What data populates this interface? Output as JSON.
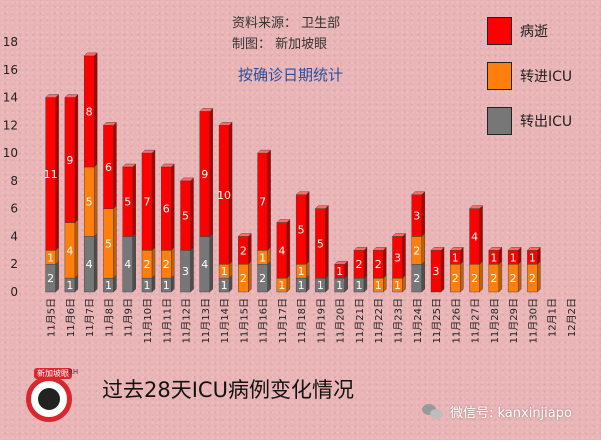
{
  "source_line": "资料来源：  卫生部",
  "credit_line": "制图：  新加坡眼",
  "footer": {
    "title": "过去28天ICU病例变化情况",
    "wechat_label": "微信号: kanxinjiapo",
    "logo_text": "新加坡眼",
    "logo_subtext": "RH"
  },
  "chart_data": {
    "type": "bar",
    "stacked": true,
    "title": "",
    "subtitle": "按确诊日期统计",
    "xlabel": "",
    "ylabel": "",
    "ylim": [
      0,
      18
    ],
    "yticks": [
      0,
      2,
      4,
      6,
      8,
      10,
      12,
      14,
      16,
      18
    ],
    "grid": false,
    "legend_position": "top-right",
    "categories": [
      "11月5日",
      "11月6日",
      "11月7日",
      "11月8日",
      "11月9日",
      "11月10日",
      "11月11日",
      "11月12日",
      "11月13日",
      "11月14日",
      "11月15日",
      "11月16日",
      "11月17日",
      "11月18日",
      "11月19日",
      "11月20日",
      "11月21日",
      "11月22日",
      "11月23日",
      "11月24日",
      "11月25日",
      "11月26日",
      "11月27日",
      "11月28日",
      "11月29日",
      "11月30日",
      "12月1日",
      "12月2日"
    ],
    "series": [
      {
        "name": "转出ICU",
        "color": "#777777",
        "side_color": "#4f4f4f",
        "top_color": "#a5a5a5",
        "values": [
          2,
          1,
          4,
          1,
          4,
          1,
          1,
          3,
          4,
          1,
          0,
          2,
          0,
          1,
          1,
          1,
          1,
          0,
          0,
          2,
          0,
          0,
          0,
          0,
          0,
          0,
          0,
          0
        ]
      },
      {
        "name": "转进ICU",
        "color": "#ff7f0e",
        "side_color": "#c75f00",
        "top_color": "#ffac5c",
        "values": [
          1,
          4,
          5,
          5,
          0,
          2,
          2,
          0,
          0,
          1,
          2,
          1,
          1,
          1,
          0,
          0,
          0,
          1,
          1,
          2,
          0,
          2,
          2,
          2,
          2,
          2,
          0,
          0
        ]
      },
      {
        "name": "病逝",
        "color": "#ff0000",
        "side_color": "#b00000",
        "top_color": "#ff6a6a",
        "values": [
          11,
          9,
          8,
          6,
          5,
          7,
          6,
          5,
          9,
          10,
          2,
          7,
          4,
          5,
          5,
          1,
          2,
          2,
          3,
          3,
          3,
          1,
          4,
          1,
          1,
          1,
          0,
          0
        ]
      }
    ],
    "legend_order": [
      "病逝",
      "转进ICU",
      "转出ICU"
    ]
  }
}
